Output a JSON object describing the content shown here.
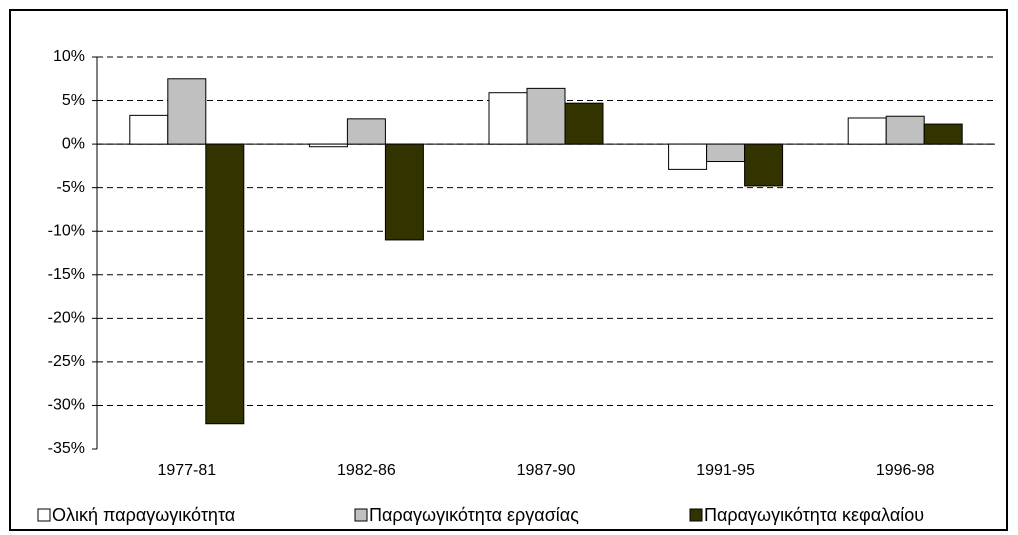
{
  "chart_data": {
    "type": "bar",
    "categories": [
      "1977-81",
      "1982-86",
      "1987-90",
      "1991-95",
      "1996-98"
    ],
    "series": [
      {
        "name": "Ολική παραγωγικότητα",
        "color": "#ffffff",
        "values": [
          3.3,
          -0.3,
          5.9,
          -2.9,
          3.0
        ]
      },
      {
        "name": "Παραγωγικότητα εργασίας",
        "color": "#c0c0c0",
        "values": [
          7.5,
          2.9,
          6.4,
          -2.0,
          3.2
        ]
      },
      {
        "name": "Παραγωγικότητα κεφαλαίου",
        "color": "#333300",
        "values": [
          -32.1,
          -11.0,
          4.7,
          -4.8,
          2.3
        ]
      }
    ],
    "ylim": [
      -35,
      10
    ],
    "yticks": [
      {
        "value": -35,
        "label": "-35%"
      },
      {
        "value": -30,
        "label": "-30%"
      },
      {
        "value": -25,
        "label": "-25%"
      },
      {
        "value": -20,
        "label": "-20%"
      },
      {
        "value": -15,
        "label": "-15%"
      },
      {
        "value": -10,
        "label": "-10%"
      },
      {
        "value": -5,
        "label": "-5%"
      },
      {
        "value": 0,
        "label": "0%"
      },
      {
        "value": 5,
        "label": "5%"
      },
      {
        "value": 10,
        "label": "10%"
      }
    ],
    "grid": true,
    "legend": "bottom"
  }
}
